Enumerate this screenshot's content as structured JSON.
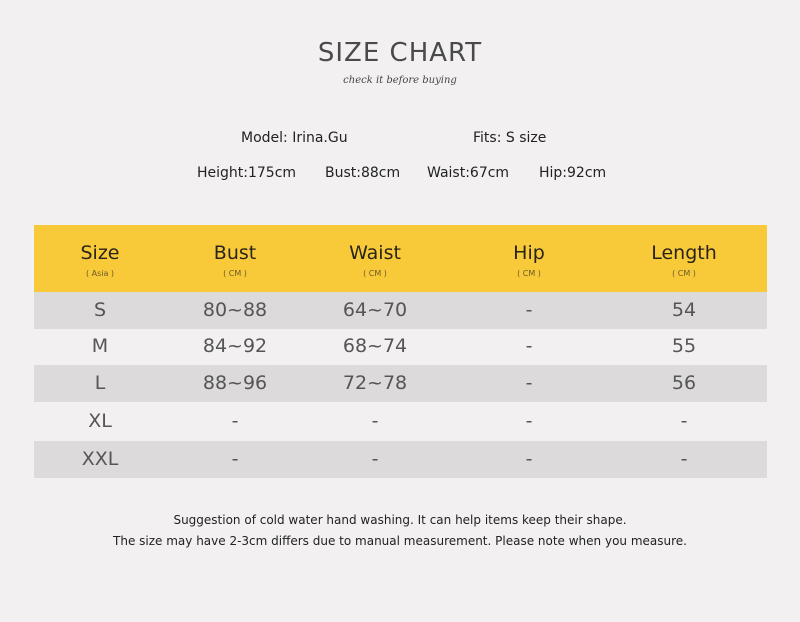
{
  "header": {
    "title": "SIZE CHART",
    "subtitle": "check it before buying"
  },
  "model": {
    "name": "Model: Irina.Gu",
    "fits": "Fits: S size",
    "height": "Height:175cm",
    "bust": "Bust:88cm",
    "waist": "Waist:67cm",
    "hip": "Hip:92cm"
  },
  "table": {
    "columns": [
      {
        "label": "Size",
        "unit": "( Asia )"
      },
      {
        "label": "Bust",
        "unit": "( CM )"
      },
      {
        "label": "Waist",
        "unit": "( CM )"
      },
      {
        "label": "Hip",
        "unit": "( CM )"
      },
      {
        "label": "Length",
        "unit": "( CM )"
      }
    ],
    "rows": [
      [
        "S",
        "80~88",
        "64~70",
        "-",
        "54"
      ],
      [
        "M",
        "84~92",
        "68~74",
        "-",
        "55"
      ],
      [
        "L",
        "88~96",
        "72~78",
        "-",
        "56"
      ],
      [
        "XL",
        "-",
        "-",
        "-",
        "-"
      ],
      [
        "XXL",
        "-",
        "-",
        "-",
        "-"
      ]
    ]
  },
  "notes": [
    "Suggestion of cold water hand washing. It can help items keep their shape.",
    "The size may have 2-3cm differs due to manual measurement. Please note when you measure."
  ],
  "colors": {
    "header": "#f8ca3a",
    "row_alt": "#dcdada",
    "background": "#f2f0f0"
  }
}
